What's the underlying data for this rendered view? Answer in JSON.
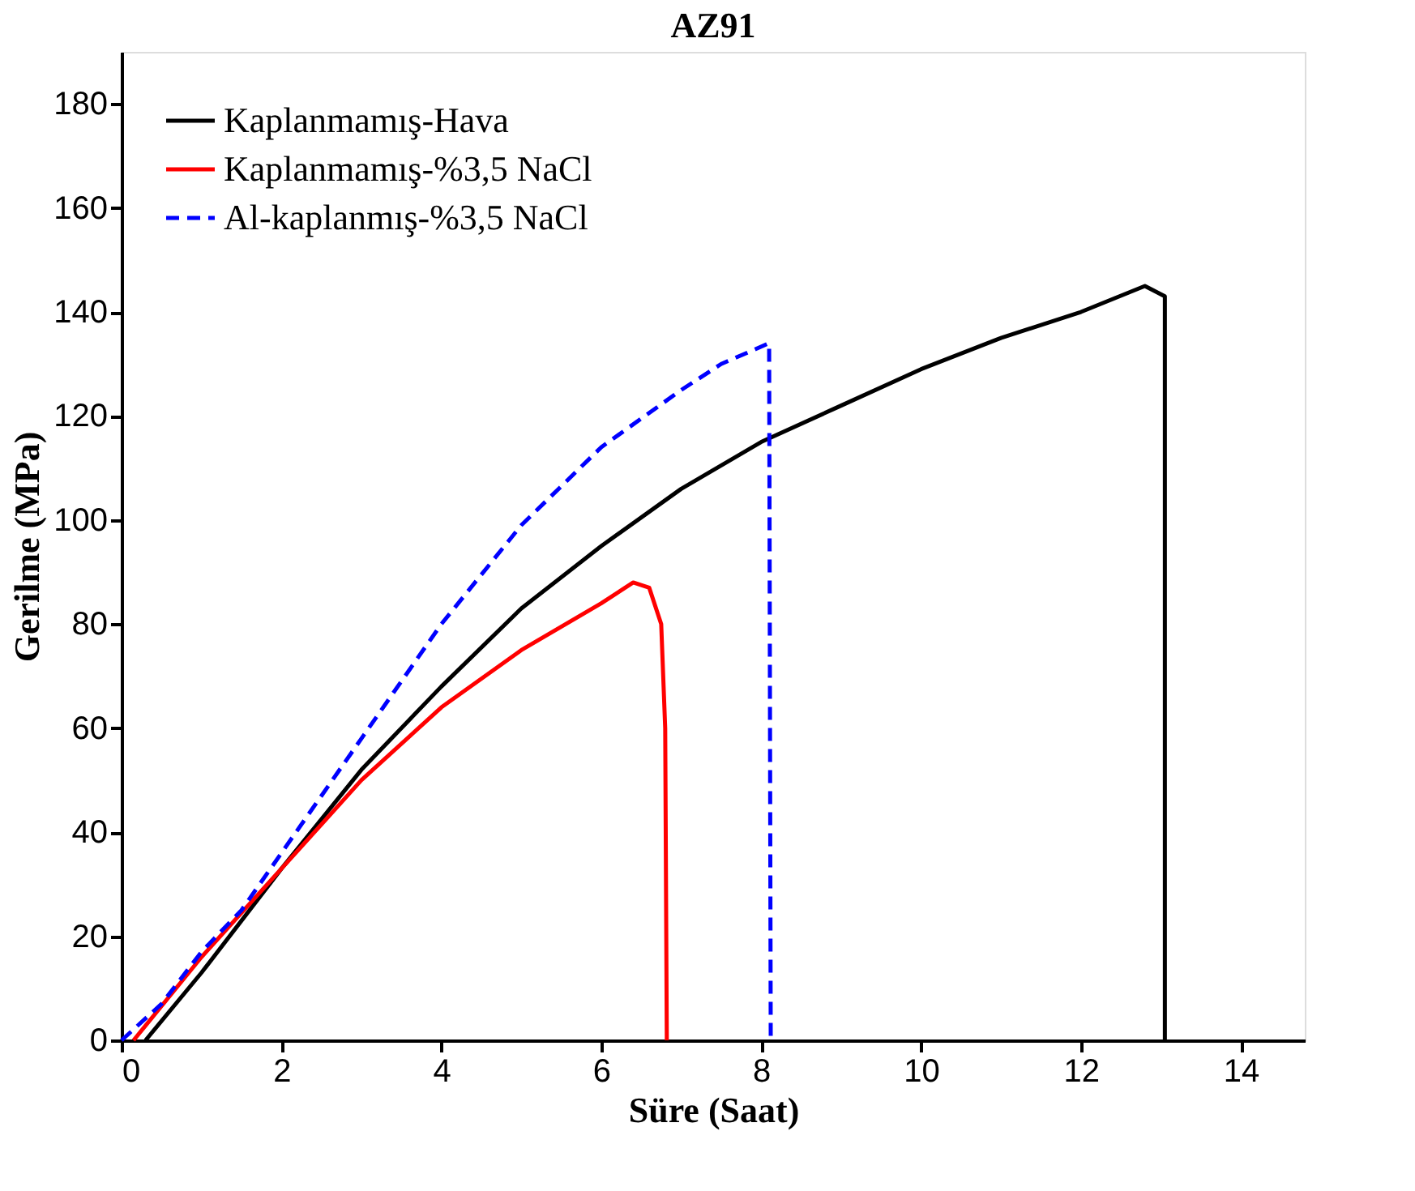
{
  "chart_data": {
    "type": "line",
    "title": "AZ91",
    "xlabel": "Süre (Saat)",
    "ylabel": "Gerilme (MPa)",
    "xlim": [
      0,
      14.8
    ],
    "xticks": [
      0,
      2,
      4,
      6,
      8,
      10,
      12,
      14
    ],
    "ylim": [
      0,
      190
    ],
    "yticks": [
      0,
      20,
      40,
      60,
      80,
      100,
      120,
      140,
      160,
      180
    ],
    "grid": false,
    "legend": "top left",
    "series": [
      {
        "name": "Kaplanmamış-Hava",
        "color": "#000000",
        "line_style": "solid",
        "x": [
          0.3,
          1,
          2,
          3,
          4,
          5,
          6,
          7,
          8,
          9,
          10,
          11,
          12,
          12.8,
          13.05,
          13.05
        ],
        "values": [
          0,
          13,
          33,
          52,
          68,
          83,
          95,
          106,
          115,
          122,
          129,
          135,
          140,
          145,
          143,
          0
        ]
      },
      {
        "name": "Kaplanmamış-%3,5 NaCl",
        "color": "#ff0000",
        "line_style": "solid",
        "x": [
          0.15,
          1,
          2,
          3,
          4,
          5,
          6,
          6.4,
          6.6,
          6.75,
          6.8,
          6.82
        ],
        "values": [
          0,
          16,
          33,
          50,
          64,
          75,
          84,
          88,
          87,
          80,
          60,
          0
        ]
      },
      {
        "name": "Al-kaplanmış-%3,5 NaCl",
        "color": "#0000ff",
        "line_style": "dashed",
        "x": [
          0,
          0.5,
          1,
          1.5,
          2,
          3,
          4,
          5,
          6,
          7,
          7.5,
          8.1,
          8.12
        ],
        "values": [
          0,
          7,
          17,
          25,
          36,
          58,
          80,
          99,
          114,
          125,
          130,
          134,
          0
        ]
      }
    ]
  }
}
